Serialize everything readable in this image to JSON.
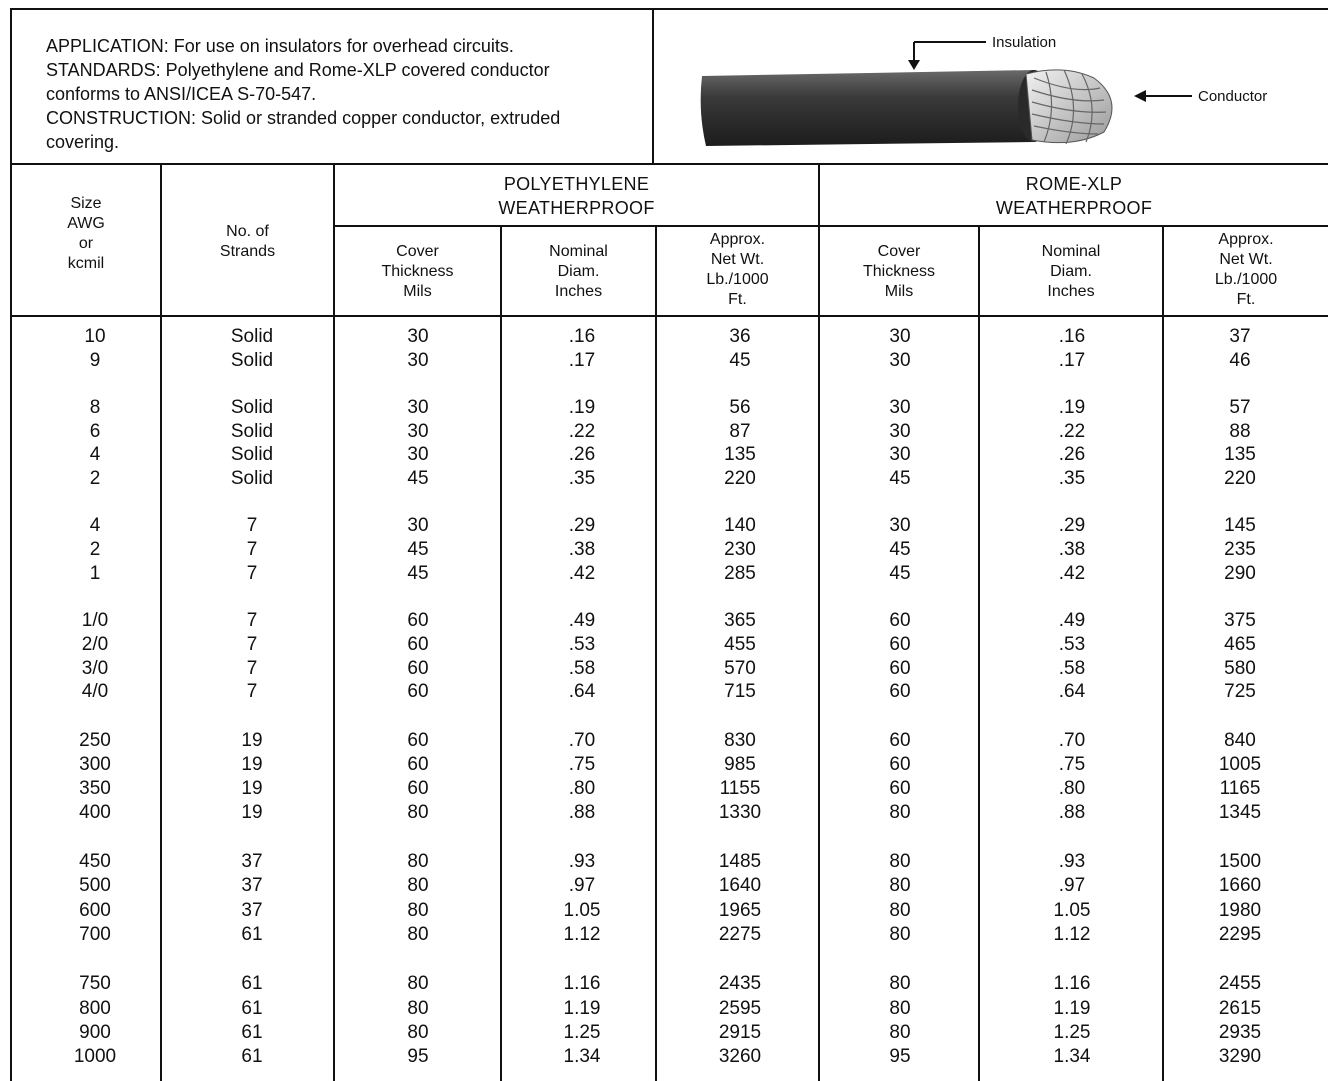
{
  "info": {
    "application": "APPLICATION: For use on insulators for overhead circuits.",
    "standards_1": "STANDARDS: Polyethylene and Rome-XLP covered conductor",
    "standards_2": "conforms to ANSI/ICEA S-70-547.",
    "construction_1": "CONSTRUCTION: Solid or stranded copper conductor, extruded",
    "construction_2": "covering."
  },
  "illustration": {
    "insulation_label": "Insulation",
    "conductor_label": "Conductor",
    "cable_color": "#3a3a3a"
  },
  "headers": {
    "size": [
      "Size",
      "AWG",
      "or",
      "kcmil"
    ],
    "strands": [
      "No. of",
      "Strands"
    ],
    "group_pe": [
      "POLYETHYLENE",
      "WEATHERPROOF"
    ],
    "group_xlp": [
      "ROME-XLP",
      "WEATHERPROOF"
    ],
    "cover": [
      "Cover",
      "Thickness",
      "Mils"
    ],
    "diam": [
      "Nominal",
      "Diam.",
      "Inches"
    ],
    "wt": [
      "Approx.",
      "Net Wt.",
      "Lb./1000",
      "Ft."
    ]
  },
  "rows": [
    [
      "10",
      "Solid",
      "30",
      ".16",
      "36",
      "30",
      ".16",
      "37"
    ],
    [
      "9",
      "Solid",
      "30",
      ".17",
      "45",
      "30",
      ".17",
      "46"
    ],
    [
      "8",
      "Solid",
      "30",
      ".19",
      "56",
      "30",
      ".19",
      "57"
    ],
    [
      "6",
      "Solid",
      "30",
      ".22",
      "87",
      "30",
      ".22",
      "88"
    ],
    [
      "4",
      "Solid",
      "30",
      ".26",
      "135",
      "30",
      ".26",
      "135"
    ],
    [
      "2",
      "Solid",
      "45",
      ".35",
      "220",
      "45",
      ".35",
      "220"
    ],
    [
      "4",
      "7",
      "30",
      ".29",
      "140",
      "30",
      ".29",
      "145"
    ],
    [
      "2",
      "7",
      "45",
      ".38",
      "230",
      "45",
      ".38",
      "235"
    ],
    [
      "1",
      "7",
      "45",
      ".42",
      "285",
      "45",
      ".42",
      "290"
    ],
    [
      "1/0",
      "7",
      "60",
      ".49",
      "365",
      "60",
      ".49",
      "375"
    ],
    [
      "2/0",
      "7",
      "60",
      ".53",
      "455",
      "60",
      ".53",
      "465"
    ],
    [
      "3/0",
      "7",
      "60",
      ".58",
      "570",
      "60",
      ".58",
      "580"
    ],
    [
      "4/0",
      "7",
      "60",
      ".64",
      "715",
      "60",
      ".64",
      "725"
    ],
    [
      "250",
      "19",
      "60",
      ".70",
      "830",
      "60",
      ".70",
      "840"
    ],
    [
      "300",
      "19",
      "60",
      ".75",
      "985",
      "60",
      ".75",
      "1005"
    ],
    [
      "350",
      "19",
      "60",
      ".80",
      "1155",
      "60",
      ".80",
      "1165"
    ],
    [
      "400",
      "19",
      "80",
      ".88",
      "1330",
      "80",
      ".88",
      "1345"
    ],
    [
      "450",
      "37",
      "80",
      ".93",
      "1485",
      "80",
      ".93",
      "1500"
    ],
    [
      "500",
      "37",
      "80",
      ".97",
      "1640",
      "80",
      ".97",
      "1660"
    ],
    [
      "600",
      "37",
      "80",
      "1.05",
      "1965",
      "80",
      "1.05",
      "1980"
    ],
    [
      "700",
      "61",
      "80",
      "1.12",
      "2275",
      "80",
      "1.12",
      "2295"
    ],
    [
      "750",
      "61",
      "80",
      "1.16",
      "2435",
      "80",
      "1.16",
      "2455"
    ],
    [
      "800",
      "61",
      "80",
      "1.19",
      "2595",
      "80",
      "1.19",
      "2615"
    ],
    [
      "900",
      "61",
      "80",
      "1.25",
      "2915",
      "80",
      "1.25",
      "2935"
    ],
    [
      "1000",
      "61",
      "95",
      "1.34",
      "3260",
      "95",
      "1.34",
      "3290"
    ]
  ]
}
